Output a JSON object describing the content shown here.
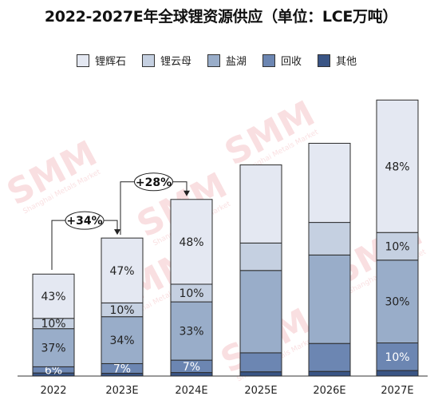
{
  "chart_data": {
    "type": "stacked-bar",
    "title": "2022-2027E年全球锂资源供应（单位：LCE万吨）",
    "categories": [
      "2022",
      "2023E",
      "2024E",
      "2025E",
      "2026E",
      "2027E"
    ],
    "totals_relative": [
      1.0,
      1.34,
      1.715,
      2.05,
      2.26,
      2.68
    ],
    "series": [
      {
        "name": "其他",
        "color": "#3a5585",
        "values": [
          0.03,
          0.02,
          0.02,
          0.02,
          0.02,
          0.02
        ]
      },
      {
        "name": "回收",
        "color": "#6c86b2",
        "values": [
          0.06,
          0.07,
          0.07,
          0.09,
          0.12,
          0.1
        ]
      },
      {
        "name": "盐湖",
        "color": "#99adc9",
        "values": [
          0.37,
          0.34,
          0.33,
          0.39,
          0.38,
          0.3
        ]
      },
      {
        "name": "锂云母",
        "color": "#c5d0e1",
        "values": [
          0.1,
          0.1,
          0.1,
          0.13,
          0.14,
          0.1
        ]
      },
      {
        "name": "锂辉石",
        "color": "#e4e8f2",
        "values": [
          0.43,
          0.47,
          0.48,
          0.37,
          0.34,
          0.48
        ]
      }
    ],
    "segment_labels": [
      [
        "",
        "6%",
        "37%",
        "10%",
        "43%"
      ],
      [
        "",
        "7%",
        "34%",
        "10%",
        "47%"
      ],
      [
        "",
        "7%",
        "33%",
        "10%",
        "48%"
      ],
      [
        "",
        "",
        "",
        "",
        ""
      ],
      [
        "",
        "",
        "",
        "",
        ""
      ],
      [
        "",
        "10%",
        "30%",
        "10%",
        "48%"
      ]
    ],
    "growth_annotations": [
      {
        "label": "+34%",
        "from": 0,
        "to": 1
      },
      {
        "label": "+28%",
        "from": 1,
        "to": 2
      }
    ],
    "legend_order": [
      "锂辉石",
      "锂云母",
      "盐湖",
      "回收",
      "其他"
    ],
    "legend_position": "top"
  },
  "watermark": "SMM",
  "watermark_sub": "Shanghai Metals Market"
}
